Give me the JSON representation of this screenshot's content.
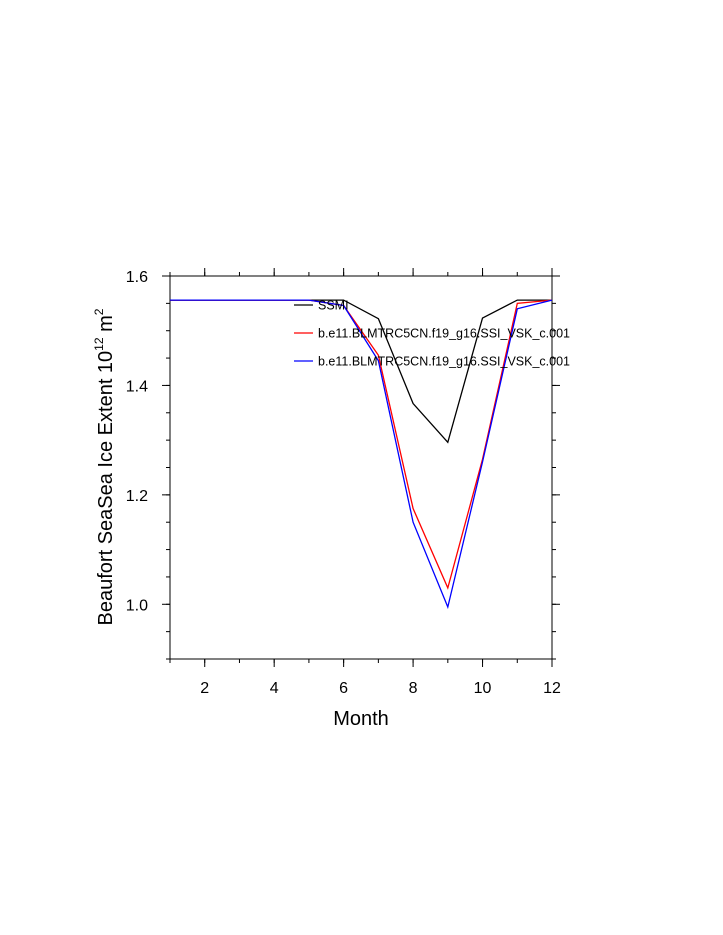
{
  "chart_data": {
    "type": "line",
    "xlabel": "Month",
    "ylabel": {
      "main": "Beaufort SeaSea Ice Extent 10",
      "exp1": "12",
      "unit": " m",
      "exp2": "2"
    },
    "xlim": [
      1,
      12
    ],
    "ylim": [
      0.9,
      1.6
    ],
    "x_ticks": [
      2,
      4,
      6,
      8,
      10,
      12
    ],
    "x_tick_labels": [
      "2",
      "4",
      "6",
      "8",
      "10",
      "12"
    ],
    "y_ticks": [
      1.0,
      1.2,
      1.4,
      1.6
    ],
    "y_tick_labels": [
      "1.0",
      "1.2",
      "1.4",
      "1.6"
    ],
    "x_minor_step": 1,
    "y_minor_step": 0.05,
    "grid": false,
    "legend_position": "top-right",
    "x": [
      1,
      2,
      3,
      4,
      5,
      6,
      7,
      8,
      9,
      10,
      11,
      12
    ],
    "series": [
      {
        "name": "SSMI",
        "color": "#000000",
        "values": [
          1.556,
          1.556,
          1.556,
          1.556,
          1.556,
          1.556,
          1.522,
          1.367,
          1.296,
          1.523,
          1.556,
          1.556
        ]
      },
      {
        "name": "b.e11.BLMTRC5CN.f19_g16.SSI_VSK_c.001",
        "color": "#ff0000",
        "values": [
          1.556,
          1.556,
          1.556,
          1.556,
          1.556,
          1.546,
          1.455,
          1.175,
          1.03,
          1.265,
          1.55,
          1.556
        ]
      },
      {
        "name": "b.e11.BLMTRC5CN.f19_g16.SSI_VSK_c.001",
        "color": "#0000ff",
        "values": [
          1.556,
          1.556,
          1.556,
          1.556,
          1.556,
          1.546,
          1.445,
          1.15,
          0.995,
          1.26,
          1.54,
          1.556
        ]
      }
    ]
  }
}
